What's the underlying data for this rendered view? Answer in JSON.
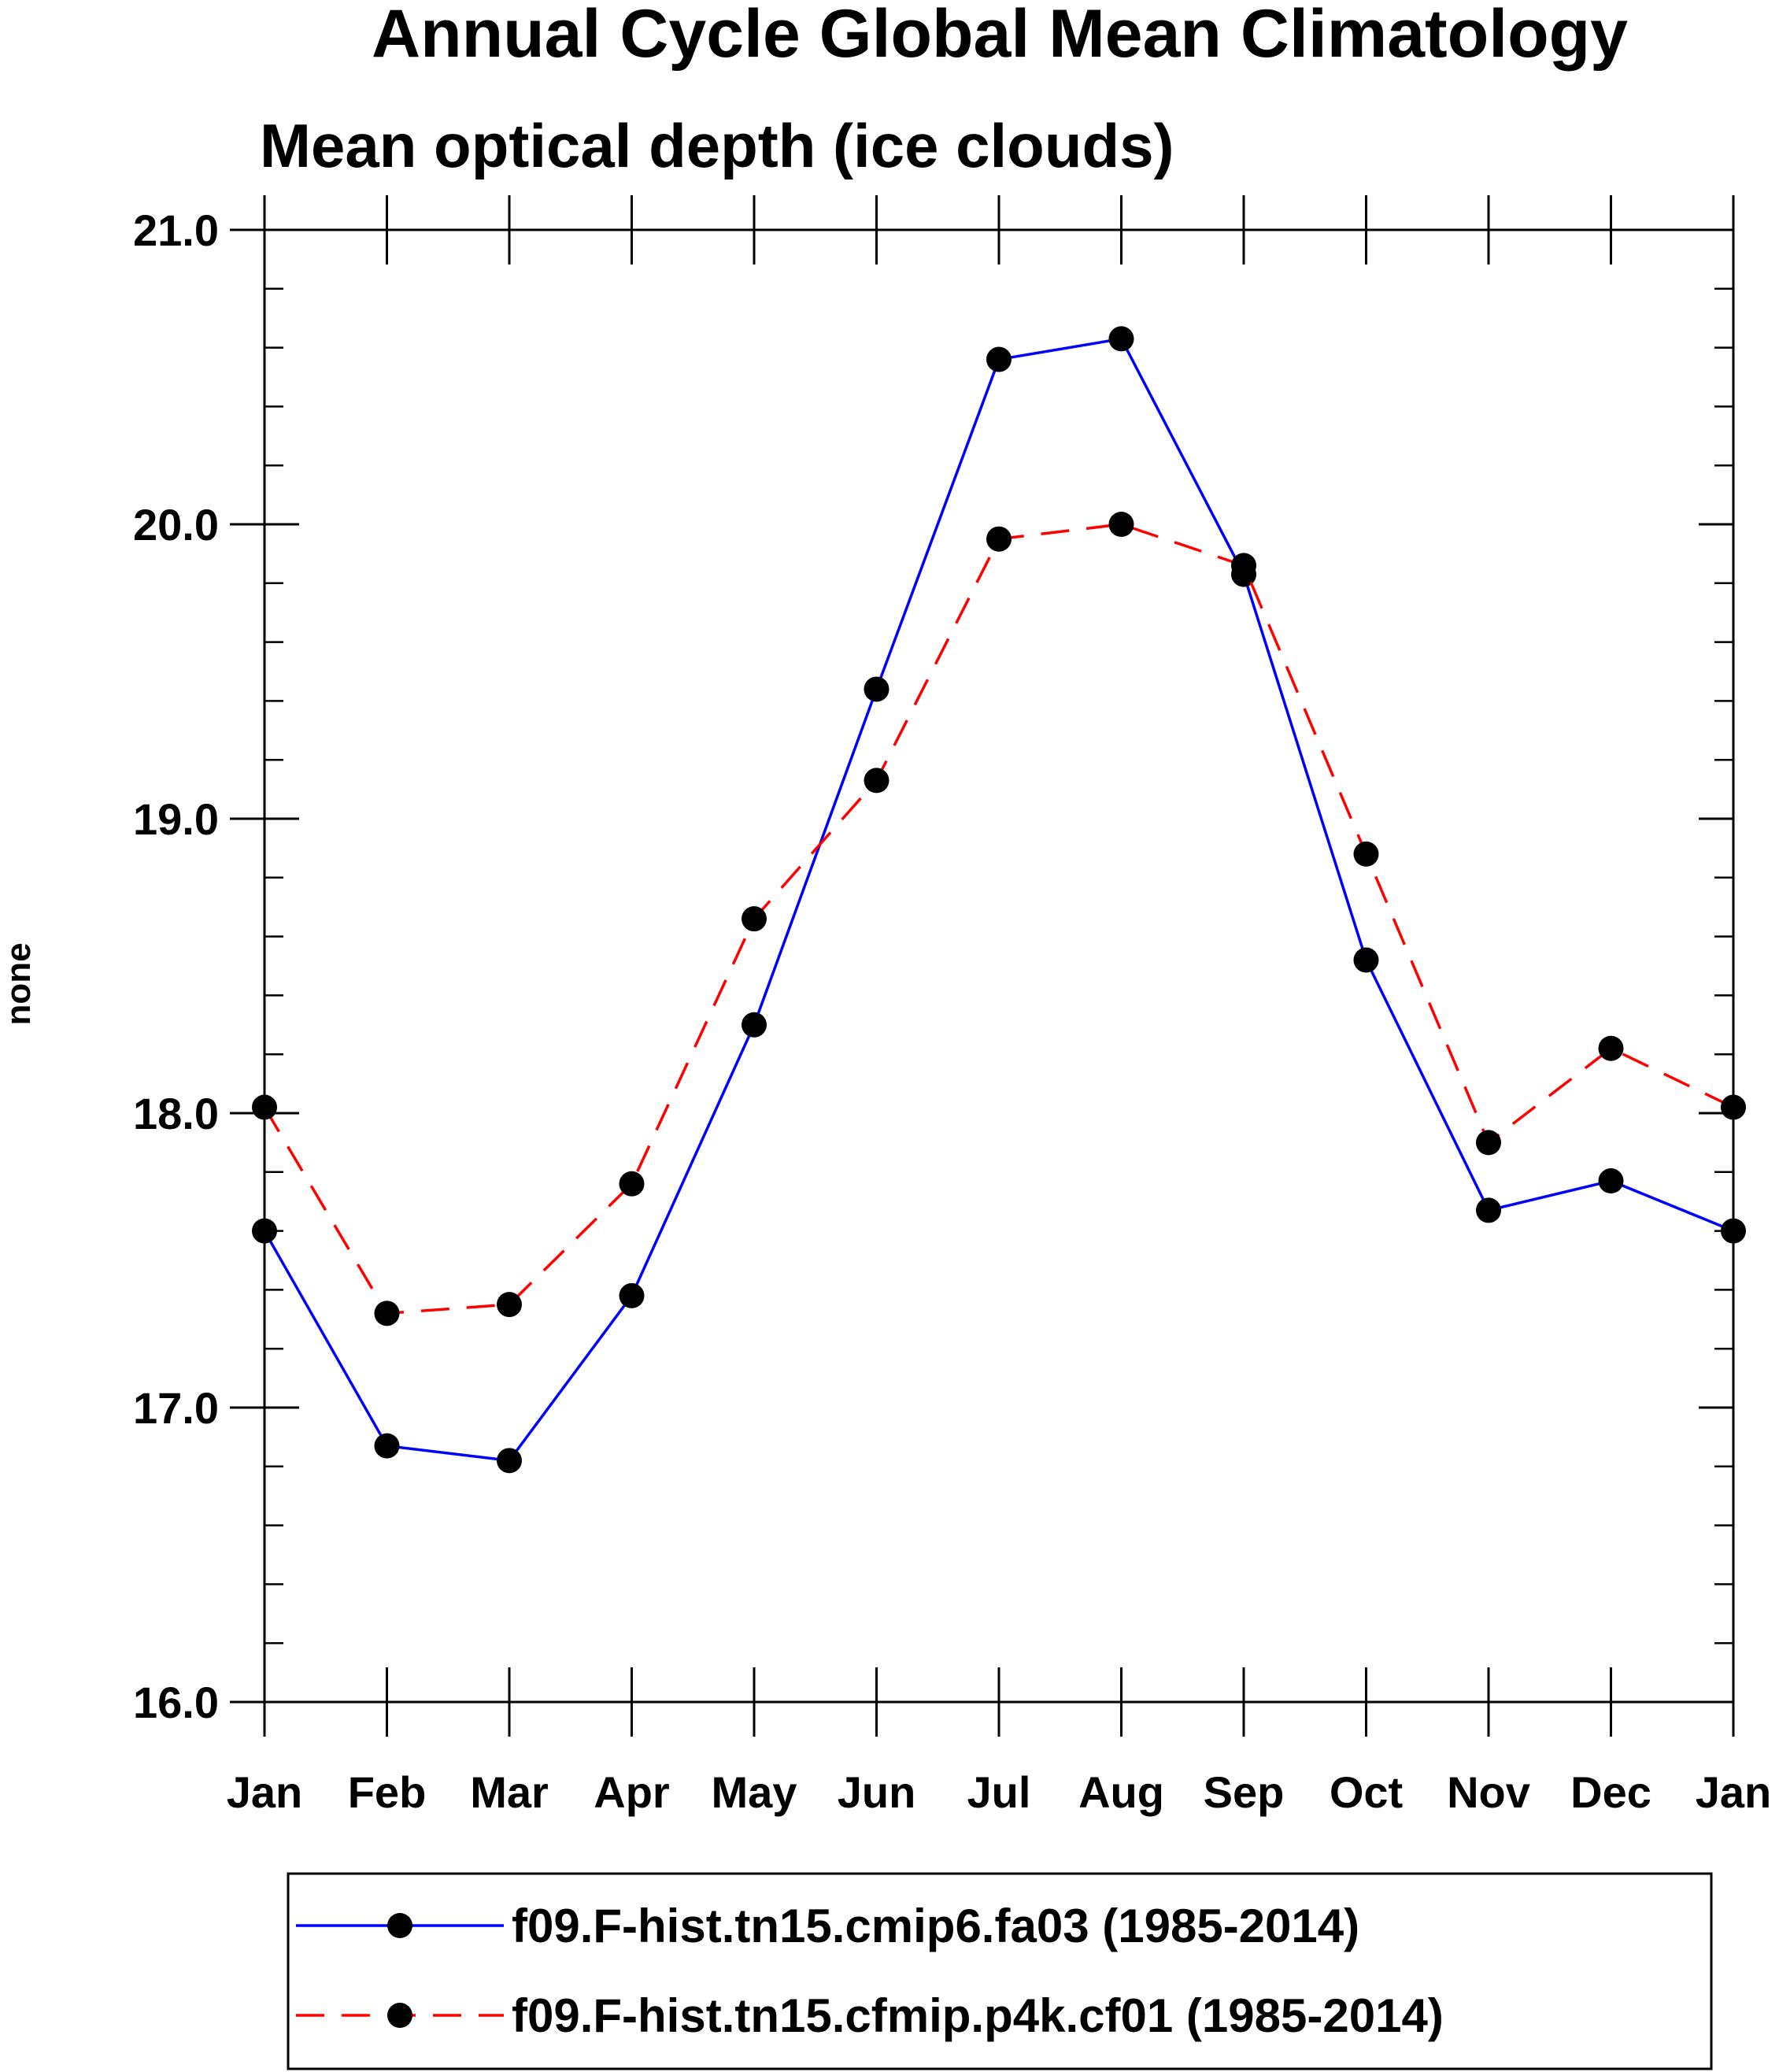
{
  "chart_data": {
    "type": "line",
    "title": "Annual Cycle Global Mean Climatology",
    "subtitle": "Mean optical depth (ice clouds)",
    "xlabel": "",
    "ylabel": "none",
    "categories": [
      "Jan",
      "Feb",
      "Mar",
      "Apr",
      "May",
      "Jun",
      "Jul",
      "Aug",
      "Sep",
      "Oct",
      "Nov",
      "Dec",
      "Jan"
    ],
    "ylim": [
      16.0,
      21.0
    ],
    "yticks": [
      "16.0",
      "17.0",
      "18.0",
      "19.0",
      "20.0",
      "21.0"
    ],
    "yticks_values": [
      16.0,
      17.0,
      18.0,
      19.0,
      20.0,
      21.0
    ],
    "y_minor_step": 0.2,
    "grid": false,
    "legend_position": "bottom",
    "series": [
      {
        "name": "f09.F-hist.tn15.cmip6.fa03 (1985-2014)",
        "color": "#0000ff",
        "line_style": "solid",
        "marker": "filled-circle",
        "values": [
          17.6,
          16.87,
          16.82,
          17.38,
          18.3,
          19.44,
          20.56,
          20.63,
          19.83,
          18.52,
          17.67,
          17.77,
          17.6
        ]
      },
      {
        "name": "f09.F-hist.tn15.cfmip.p4k.cf01 (1985-2014)",
        "color": "#ff0000",
        "line_style": "dashed",
        "marker": "filled-circle",
        "values": [
          18.02,
          17.32,
          17.35,
          17.76,
          18.66,
          19.13,
          19.95,
          20.0,
          19.86,
          18.88,
          17.9,
          18.22,
          18.02
        ]
      }
    ]
  }
}
